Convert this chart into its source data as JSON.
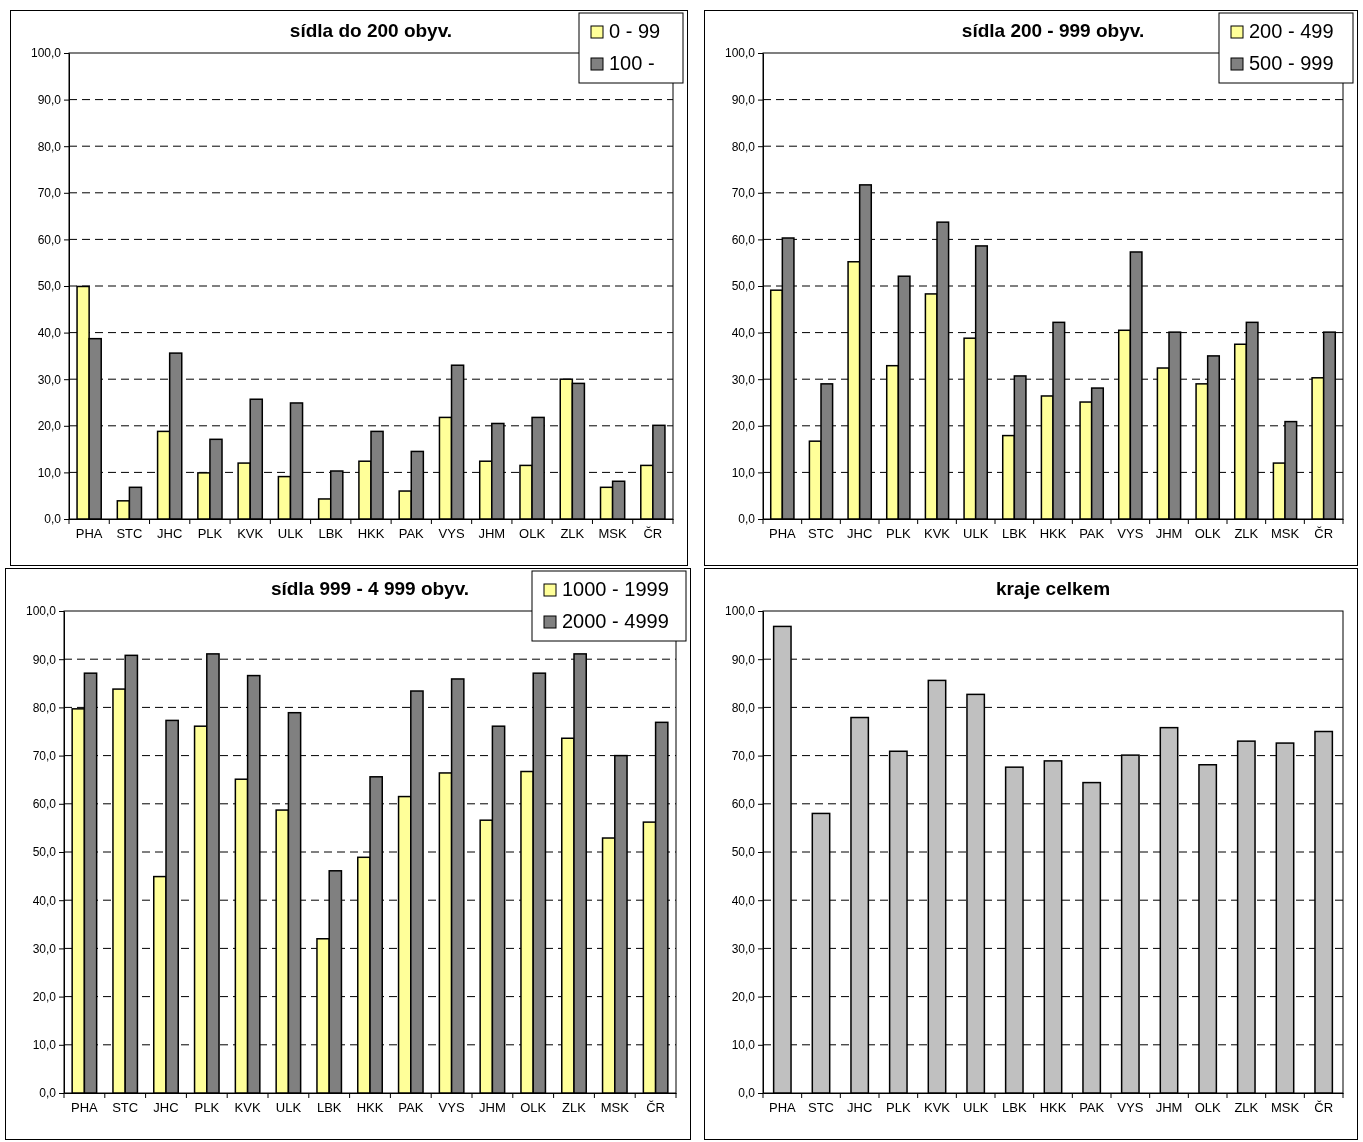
{
  "chart_data": [
    {
      "type": "bar",
      "title": "sídla do 200 obyv.",
      "categories": [
        "PHA",
        "STC",
        "JHC",
        "PLK",
        "KVK",
        "ULK",
        "LBK",
        "HKK",
        "PAK",
        "VYS",
        "JHM",
        "OLK",
        "ZLK",
        "MSK",
        "ČR"
      ],
      "series": [
        {
          "name": "0 - 99",
          "color": "#ffff99",
          "values": [
            49.9,
            3.9,
            18.8,
            9.9,
            12.0,
            9.1,
            4.3,
            12.4,
            6.0,
            21.8,
            12.4,
            11.5,
            30.0,
            6.8,
            11.5
          ]
        },
        {
          "name": "100 -",
          "color": "#808080",
          "values": [
            38.7,
            6.8,
            35.6,
            17.1,
            25.7,
            24.9,
            10.3,
            18.8,
            14.5,
            33.0,
            20.5,
            21.8,
            29.1,
            8.1,
            20.1
          ]
        }
      ],
      "ylim": [
        0,
        100
      ],
      "yticks": [
        {
          "value": 0,
          "label": "0,0"
        },
        {
          "value": 10,
          "label": "10,0"
        },
        {
          "value": 20,
          "label": "20,0"
        },
        {
          "value": 30,
          "label": "30,0"
        },
        {
          "value": 40,
          "label": "40,0"
        },
        {
          "value": 50,
          "label": "50,0"
        },
        {
          "value": 60,
          "label": "60,0"
        },
        {
          "value": 70,
          "label": "70,0"
        },
        {
          "value": 80,
          "label": "80,0"
        },
        {
          "value": 90,
          "label": "90,0"
        },
        {
          "value": 100,
          "label": "100,0"
        }
      ],
      "grid": "y",
      "legend": "top right"
    },
    {
      "type": "bar",
      "title": "sídla 200 - 999 obyv.",
      "categories": [
        "PHA",
        "STC",
        "JHC",
        "PLK",
        "KVK",
        "ULK",
        "LBK",
        "HKK",
        "PAK",
        "VYS",
        "JHM",
        "OLK",
        "ZLK",
        "MSK",
        "ČR"
      ],
      "series": [
        {
          "name": "200 - 499",
          "color": "#ffff99",
          "values": [
            49.1,
            16.7,
            55.2,
            32.9,
            48.3,
            38.8,
            17.9,
            26.4,
            25.1,
            40.5,
            32.4,
            29.0,
            37.5,
            12.0,
            30.3
          ]
        },
        {
          "name": "500 - 999",
          "color": "#808080",
          "values": [
            60.3,
            29.0,
            71.7,
            52.1,
            63.7,
            58.6,
            30.7,
            42.2,
            28.1,
            57.3,
            40.1,
            35.0,
            42.2,
            20.9,
            40.1
          ]
        }
      ],
      "ylim": [
        0,
        100
      ],
      "yticks": [
        {
          "value": 0,
          "label": "0,0"
        },
        {
          "value": 10,
          "label": "10,0"
        },
        {
          "value": 20,
          "label": "20,0"
        },
        {
          "value": 30,
          "label": "30,0"
        },
        {
          "value": 40,
          "label": "40,0"
        },
        {
          "value": 50,
          "label": "50,0"
        },
        {
          "value": 60,
          "label": "60,0"
        },
        {
          "value": 70,
          "label": "70,0"
        },
        {
          "value": 80,
          "label": "80,0"
        },
        {
          "value": 90,
          "label": "90,0"
        },
        {
          "value": 100,
          "label": "100,0"
        }
      ],
      "grid": "y",
      "legend": "top right"
    },
    {
      "type": "bar",
      "title": "sídla 999 - 4 999 obyv.",
      "categories": [
        "PHA",
        "STC",
        "JHC",
        "PLK",
        "KVK",
        "ULK",
        "LBK",
        "HKK",
        "PAK",
        "VYS",
        "JHM",
        "OLK",
        "ZLK",
        "MSK",
        "ČR"
      ],
      "series": [
        {
          "name": "1000 - 1999",
          "color": "#ffff99",
          "values": [
            79.7,
            83.8,
            44.9,
            76.1,
            65.1,
            58.7,
            32.0,
            48.9,
            61.5,
            66.4,
            56.6,
            66.7,
            73.6,
            52.9,
            56.2
          ]
        },
        {
          "name": "2000 - 4999",
          "color": "#808080",
          "values": [
            87.1,
            90.8,
            77.3,
            91.1,
            86.6,
            78.9,
            46.1,
            65.6,
            83.4,
            85.9,
            76.1,
            87.1,
            91.1,
            70.0,
            76.9
          ]
        }
      ],
      "ylim": [
        0,
        100
      ],
      "yticks": [
        {
          "value": 0,
          "label": "0,0"
        },
        {
          "value": 10,
          "label": "10,0"
        },
        {
          "value": 20,
          "label": "20,0"
        },
        {
          "value": 30,
          "label": "30,0"
        },
        {
          "value": 40,
          "label": "40,0"
        },
        {
          "value": 50,
          "label": "50,0"
        },
        {
          "value": 60,
          "label": "60,0"
        },
        {
          "value": 70,
          "label": "70,0"
        },
        {
          "value": 80,
          "label": "80,0"
        },
        {
          "value": 90,
          "label": "90,0"
        },
        {
          "value": 100,
          "label": "100,0"
        }
      ],
      "grid": "y",
      "legend": "top right"
    },
    {
      "type": "bar",
      "title": "kraje celkem",
      "categories": [
        "PHA",
        "STC",
        "JHC",
        "PLK",
        "KVK",
        "ULK",
        "LBK",
        "HKK",
        "PAK",
        "VYS",
        "JHM",
        "OLK",
        "ZLK",
        "MSK",
        "ČR"
      ],
      "values": [
        96.8,
        58.0,
        77.9,
        70.9,
        85.6,
        82.7,
        67.6,
        68.9,
        64.4,
        70.1,
        75.8,
        68.1,
        73.0,
        72.6,
        75.0
      ],
      "color": "#c0c0c0",
      "ylim": [
        0,
        100
      ],
      "yticks": [
        {
          "value": 0,
          "label": "0,0"
        },
        {
          "value": 10,
          "label": "10,0"
        },
        {
          "value": 20,
          "label": "20,0"
        },
        {
          "value": 30,
          "label": "30,0"
        },
        {
          "value": 40,
          "label": "40,0"
        },
        {
          "value": 50,
          "label": "50,0"
        },
        {
          "value": 60,
          "label": "60,0"
        },
        {
          "value": 70,
          "label": "70,0"
        },
        {
          "value": 80,
          "label": "80,0"
        },
        {
          "value": 90,
          "label": "90,0"
        },
        {
          "value": 100,
          "label": "100,0"
        }
      ],
      "grid": "y"
    }
  ]
}
